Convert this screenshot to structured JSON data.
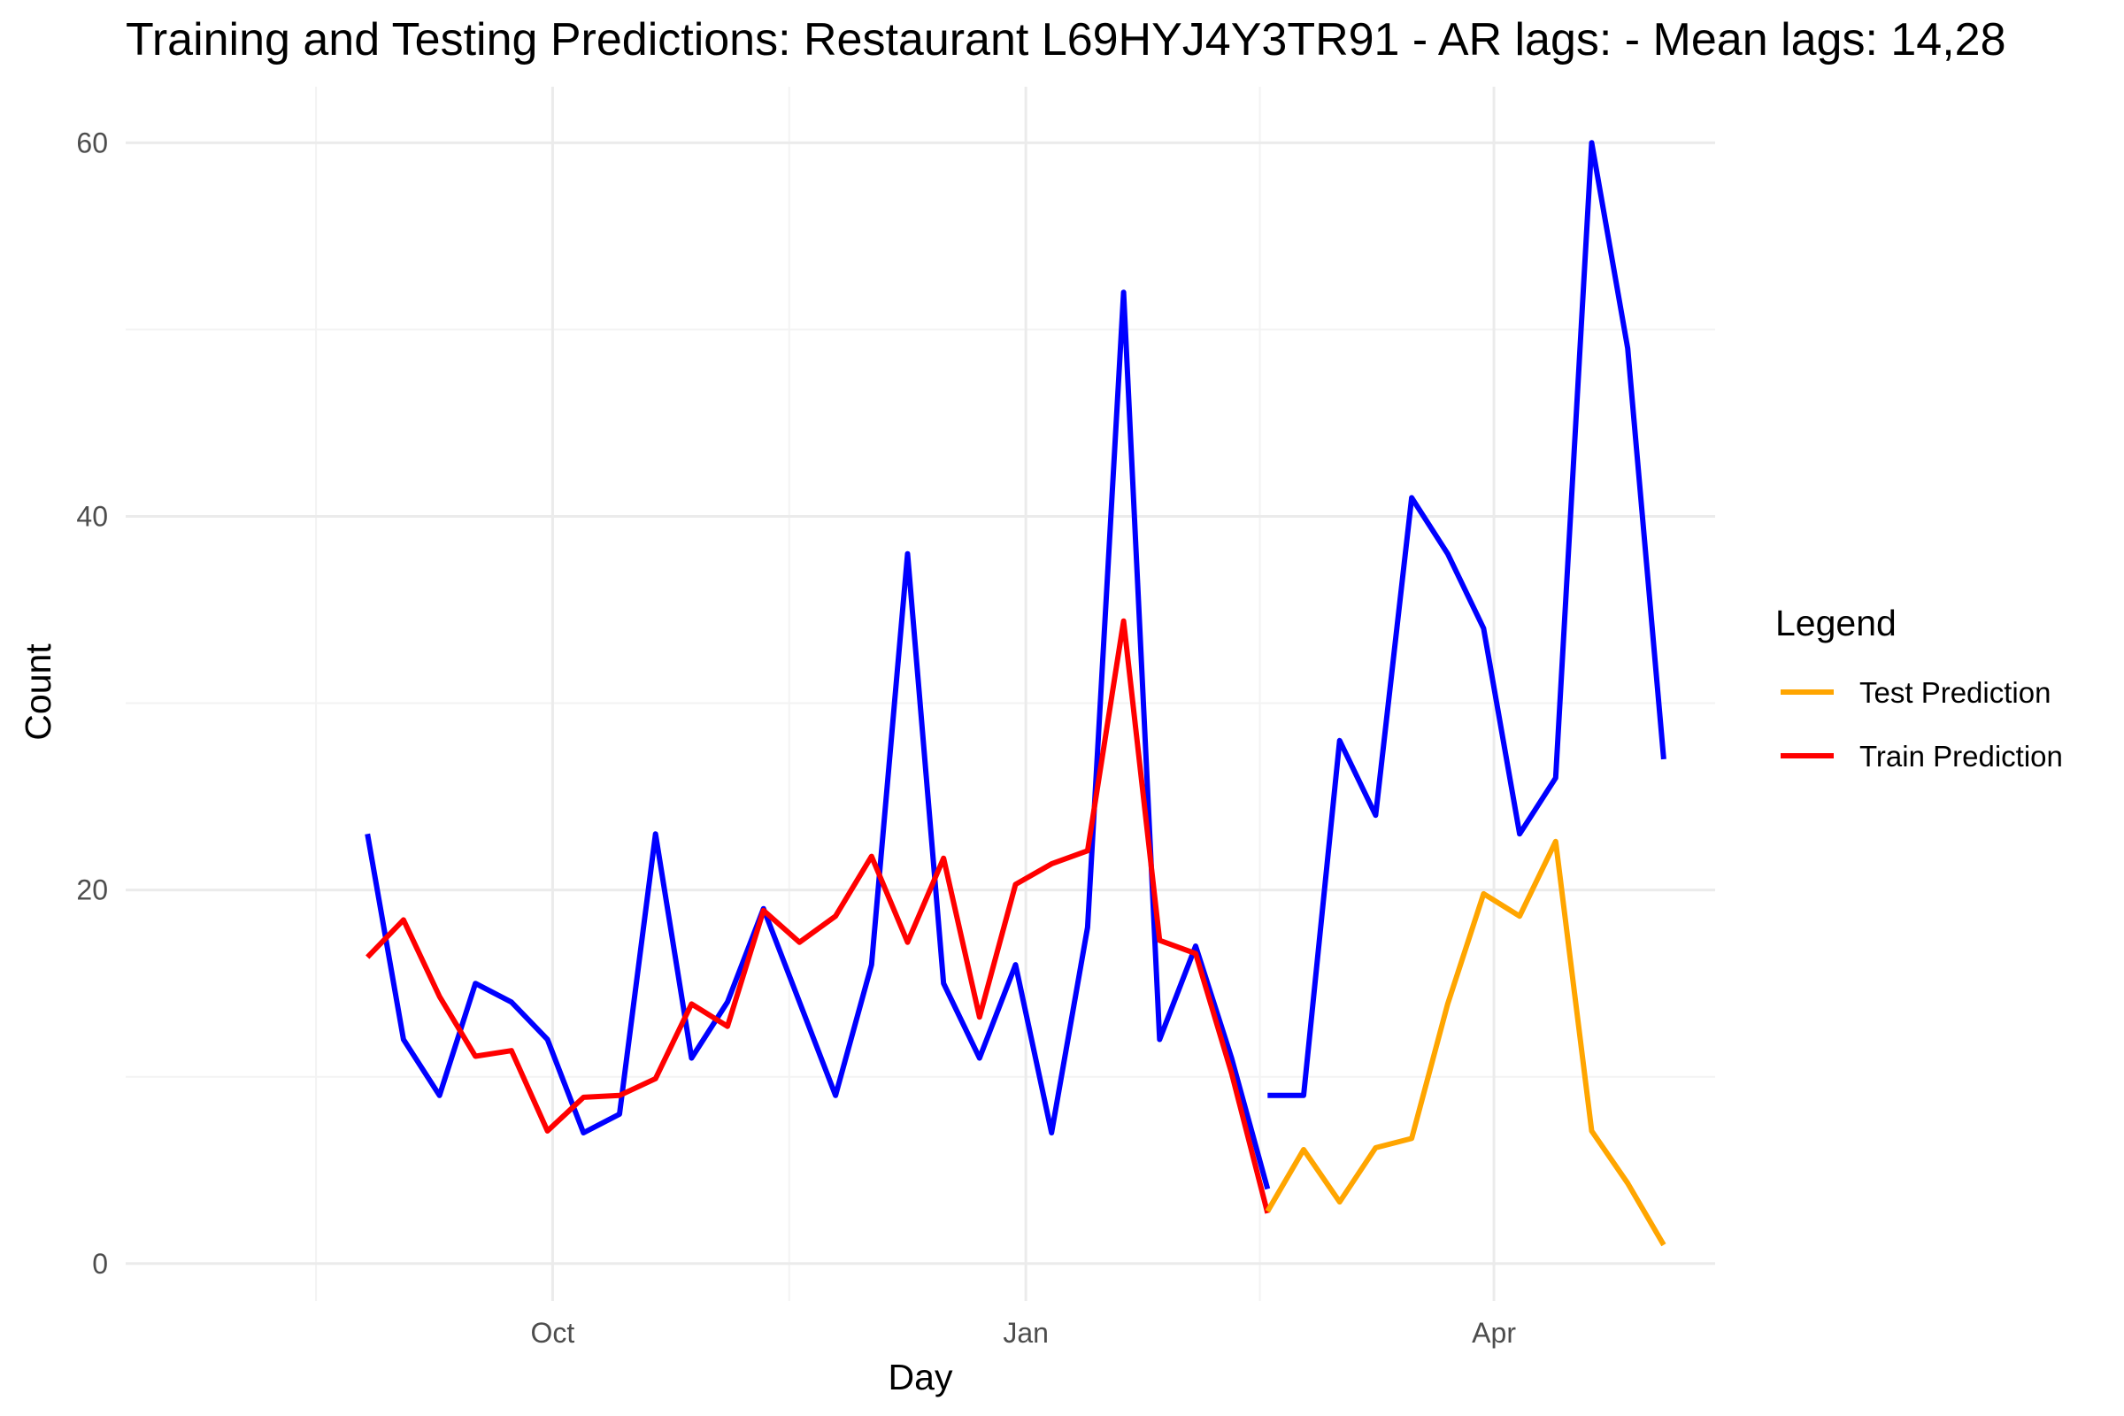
{
  "chart_data": {
    "type": "line",
    "title": "Training and Testing Predictions: Restaurant L69HYJ4Y3TR91 - AR lags:  - Mean lags: 14,28",
    "xlabel": "Day",
    "ylabel": "Count",
    "x_ticks": [
      {
        "label": "Oct",
        "date": "2023-10-01"
      },
      {
        "label": "Jan",
        "date": "2024-01-01"
      },
      {
        "label": "Apr",
        "date": "2024-04-01"
      }
    ],
    "y_ticks": [
      0,
      20,
      40,
      60
    ],
    "xlim": [
      "2023-07-10",
      "2024-05-14"
    ],
    "ylim": [
      -2,
      63
    ],
    "grid": true,
    "legend": {
      "title": "Legend",
      "position": "right",
      "entries": [
        {
          "label": "Test Prediction",
          "color": "#FFA500"
        },
        {
          "label": "Train Prediction",
          "color": "#FF0000"
        }
      ]
    },
    "series": [
      {
        "key": "actual",
        "color": "#0000FF",
        "segments": [
          {
            "x": [
              "2023-08-26",
              "2023-09-02",
              "2023-09-09",
              "2023-09-16",
              "2023-09-23",
              "2023-09-30",
              "2023-10-07",
              "2023-10-14",
              "2023-10-21",
              "2023-10-28",
              "2023-11-04",
              "2023-11-11",
              "2023-11-18",
              "2023-11-25",
              "2023-12-02",
              "2023-12-09",
              "2023-12-16",
              "2023-12-23",
              "2023-12-30",
              "2024-01-06",
              "2024-01-13",
              "2024-01-20",
              "2024-01-27",
              "2024-02-03",
              "2024-02-10",
              "2024-02-17"
            ],
            "y": [
              23,
              12,
              9,
              15,
              14,
              12,
              7,
              8,
              23,
              11,
              14,
              19,
              14,
              9,
              16,
              38,
              15,
              11,
              16,
              7,
              18,
              52,
              12,
              17,
              11,
              4
            ]
          },
          {
            "x": [
              "2024-02-17",
              "2024-02-24",
              "2024-03-02",
              "2024-03-09",
              "2024-03-16",
              "2024-03-23",
              "2024-03-30",
              "2024-04-06",
              "2024-04-13",
              "2024-04-20",
              "2024-04-27",
              "2024-05-04"
            ],
            "y": [
              9,
              9,
              28,
              24,
              41,
              38,
              34,
              23,
              26,
              60,
              49,
              27
            ]
          }
        ]
      },
      {
        "key": "train",
        "name": "Train Prediction",
        "color": "#FF0000",
        "x": [
          "2023-08-26",
          "2023-09-02",
          "2023-09-09",
          "2023-09-16",
          "2023-09-23",
          "2023-09-30",
          "2023-10-07",
          "2023-10-14",
          "2023-10-21",
          "2023-10-28",
          "2023-11-04",
          "2023-11-11",
          "2023-11-18",
          "2023-11-25",
          "2023-12-02",
          "2023-12-09",
          "2023-12-16",
          "2023-12-23",
          "2023-12-30",
          "2024-01-06",
          "2024-01-13",
          "2024-01-20",
          "2024-01-27",
          "2024-02-03",
          "2024-02-10",
          "2024-02-17"
        ],
        "y": [
          16.4,
          18.4,
          14.3,
          11.1,
          11.4,
          7.1,
          8.9,
          9.0,
          9.9,
          13.9,
          12.7,
          18.9,
          17.2,
          18.6,
          21.8,
          17.2,
          21.7,
          13.2,
          20.3,
          21.4,
          22.1,
          34.4,
          17.3,
          16.6,
          10.2,
          2.7
        ]
      },
      {
        "key": "test",
        "name": "Test Prediction",
        "color": "#FFA500",
        "x": [
          "2024-02-17",
          "2024-02-24",
          "2024-03-02",
          "2024-03-09",
          "2024-03-16",
          "2024-03-23",
          "2024-03-30",
          "2024-04-06",
          "2024-04-13",
          "2024-04-20",
          "2024-04-27",
          "2024-05-04"
        ],
        "y": [
          2.8,
          6.1,
          3.3,
          6.2,
          6.7,
          13.9,
          19.8,
          18.6,
          22.6,
          7.1,
          4.3,
          1.0
        ]
      }
    ]
  }
}
